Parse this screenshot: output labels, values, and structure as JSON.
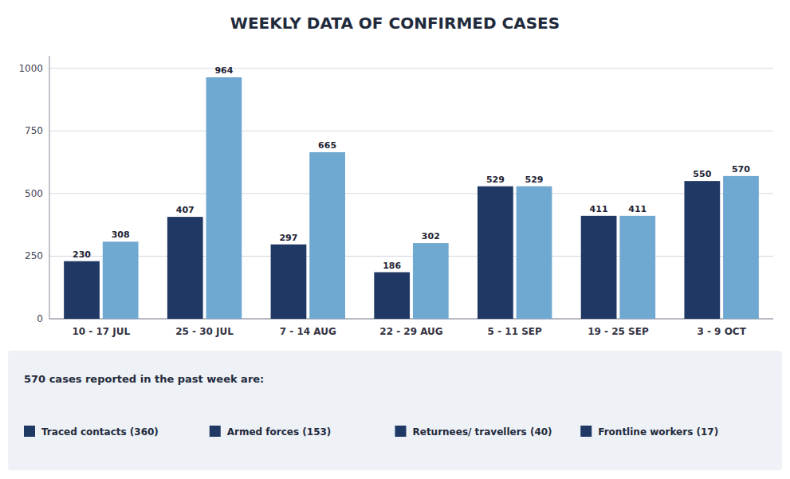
{
  "chart_data": {
    "type": "bar",
    "title": "WEEKLY DATA OF CONFIRMED CASES",
    "categories": [
      "10 - 17 JUL",
      "25 - 30 JUL",
      "7 - 14 AUG",
      "22 - 29 AUG",
      "5 - 11 SEP",
      "19 - 25 SEP",
      "3 - 9 OCT"
    ],
    "series": [
      {
        "color": "#1f3864",
        "values": [
          230,
          407,
          297,
          186,
          529,
          411,
          550
        ]
      },
      {
        "color": "#6fa8d0",
        "values": [
          308,
          964,
          665,
          302,
          529,
          411,
          570
        ]
      }
    ],
    "ylim": [
      0,
      1050
    ],
    "yticks": [
      0,
      250,
      500,
      750,
      1000
    ],
    "grid": true,
    "data_labels": true,
    "annotations": [
      {
        "text": "570 cases reported in the past week are:"
      },
      {
        "text": "Traced contacts (360)",
        "color": "#1f3864"
      },
      {
        "text": "Armed forces (153)",
        "color": "#1f3864"
      },
      {
        "text": "Returnees/ travellers (40)",
        "color": "#1f3864"
      },
      {
        "text": "Frontline workers (17)",
        "color": "#1f3864"
      }
    ]
  }
}
